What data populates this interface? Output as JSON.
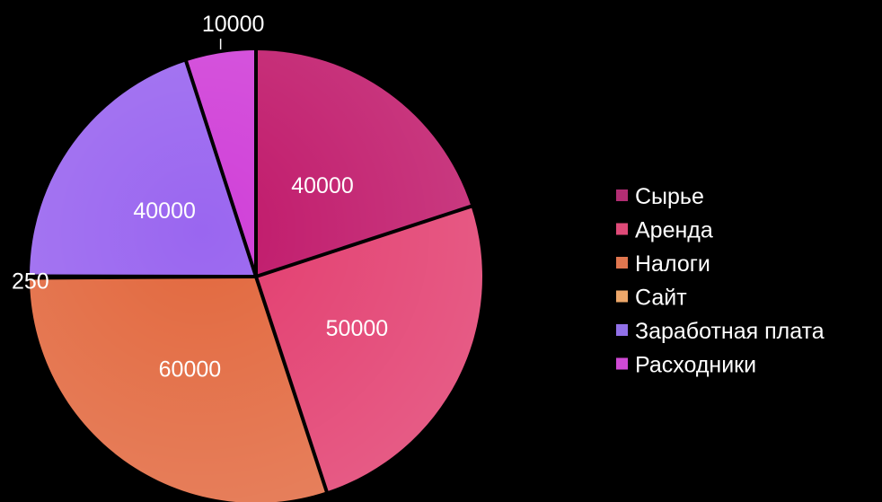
{
  "chart_data": {
    "type": "pie",
    "title": "",
    "legend_position": "right",
    "slices": [
      {
        "name": "Сырье",
        "value": 40000,
        "label": "40000",
        "color": "#c0186a",
        "legend_color": "#b22d73"
      },
      {
        "name": "Аренда",
        "value": 50000,
        "label": "50000",
        "color": "#e23c6e",
        "legend_color": "#df4a78"
      },
      {
        "name": "Налоги",
        "value": 60000,
        "label": "60000",
        "color": "#e2683e",
        "legend_color": "#e0764f"
      },
      {
        "name": "Сайт",
        "value": 250,
        "label": "250",
        "color": "#e8a070",
        "legend_color": "#eda76a"
      },
      {
        "name": "Заработная плата",
        "value": 40000,
        "label": "40000",
        "color": "#9a66f0",
        "legend_color": "#9170e8"
      },
      {
        "name": "Расходники",
        "value": 10000,
        "label": "10000",
        "color": "#d040d8",
        "legend_color": "#cf4ad4"
      }
    ]
  }
}
